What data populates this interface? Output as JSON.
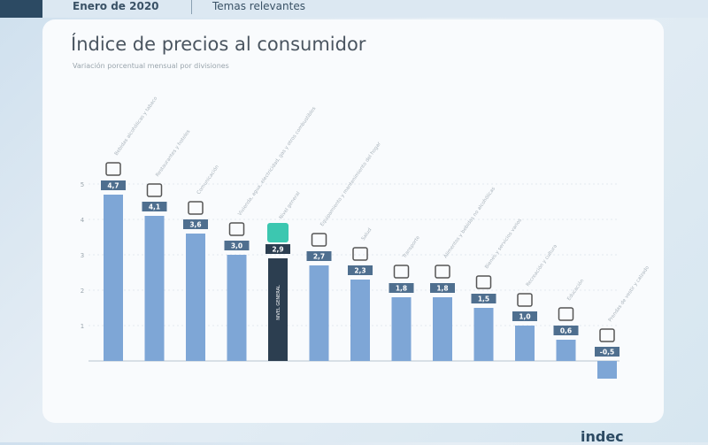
{
  "header": {
    "date": "Enero de 2020",
    "section": "Temas relevantes"
  },
  "brand": "indec",
  "chart_data": {
    "type": "bar",
    "title": "Índice de precios al consumidor",
    "subtitle": "Variación porcentual mensual por divisiones",
    "categories": [
      "Bebidas alcohólicas y tabaco",
      "Restaurantes y hoteles",
      "Comunicación",
      "Vivienda, agua, electricidad, gas y otros combustibles",
      "Nivel general",
      "Equipamiento y mantenimiento del hogar",
      "Salud",
      "Transporte",
      "Alimentos y bebidas no alcohólicas",
      "Bienes y servicios varios",
      "Recreación y cultura",
      "Educación",
      "Prendas de vestir y calzado"
    ],
    "values": [
      4.7,
      4.1,
      3.6,
      3.0,
      2.9,
      2.7,
      2.3,
      1.8,
      1.8,
      1.5,
      1.0,
      0.6,
      -0.5
    ],
    "labels": [
      "4,7",
      "4,1",
      "3,6",
      "3,0",
      "2,9",
      "2,7",
      "2,3",
      "1,8",
      "1,8",
      "1,5",
      "1,0",
      "0,6",
      "-0,5"
    ],
    "highlight_index": 4,
    "highlight_text": "NIVEL GENERAL",
    "yticks": [
      1,
      2,
      3,
      4,
      5
    ],
    "ylim": [
      -0.5,
      5
    ],
    "grid": true,
    "colors": {
      "bar": "#7ea6d6",
      "highlight": "#2c3e50",
      "label_bg": "#4f6f8f",
      "highlight_icon": "#3cc7b0"
    }
  }
}
